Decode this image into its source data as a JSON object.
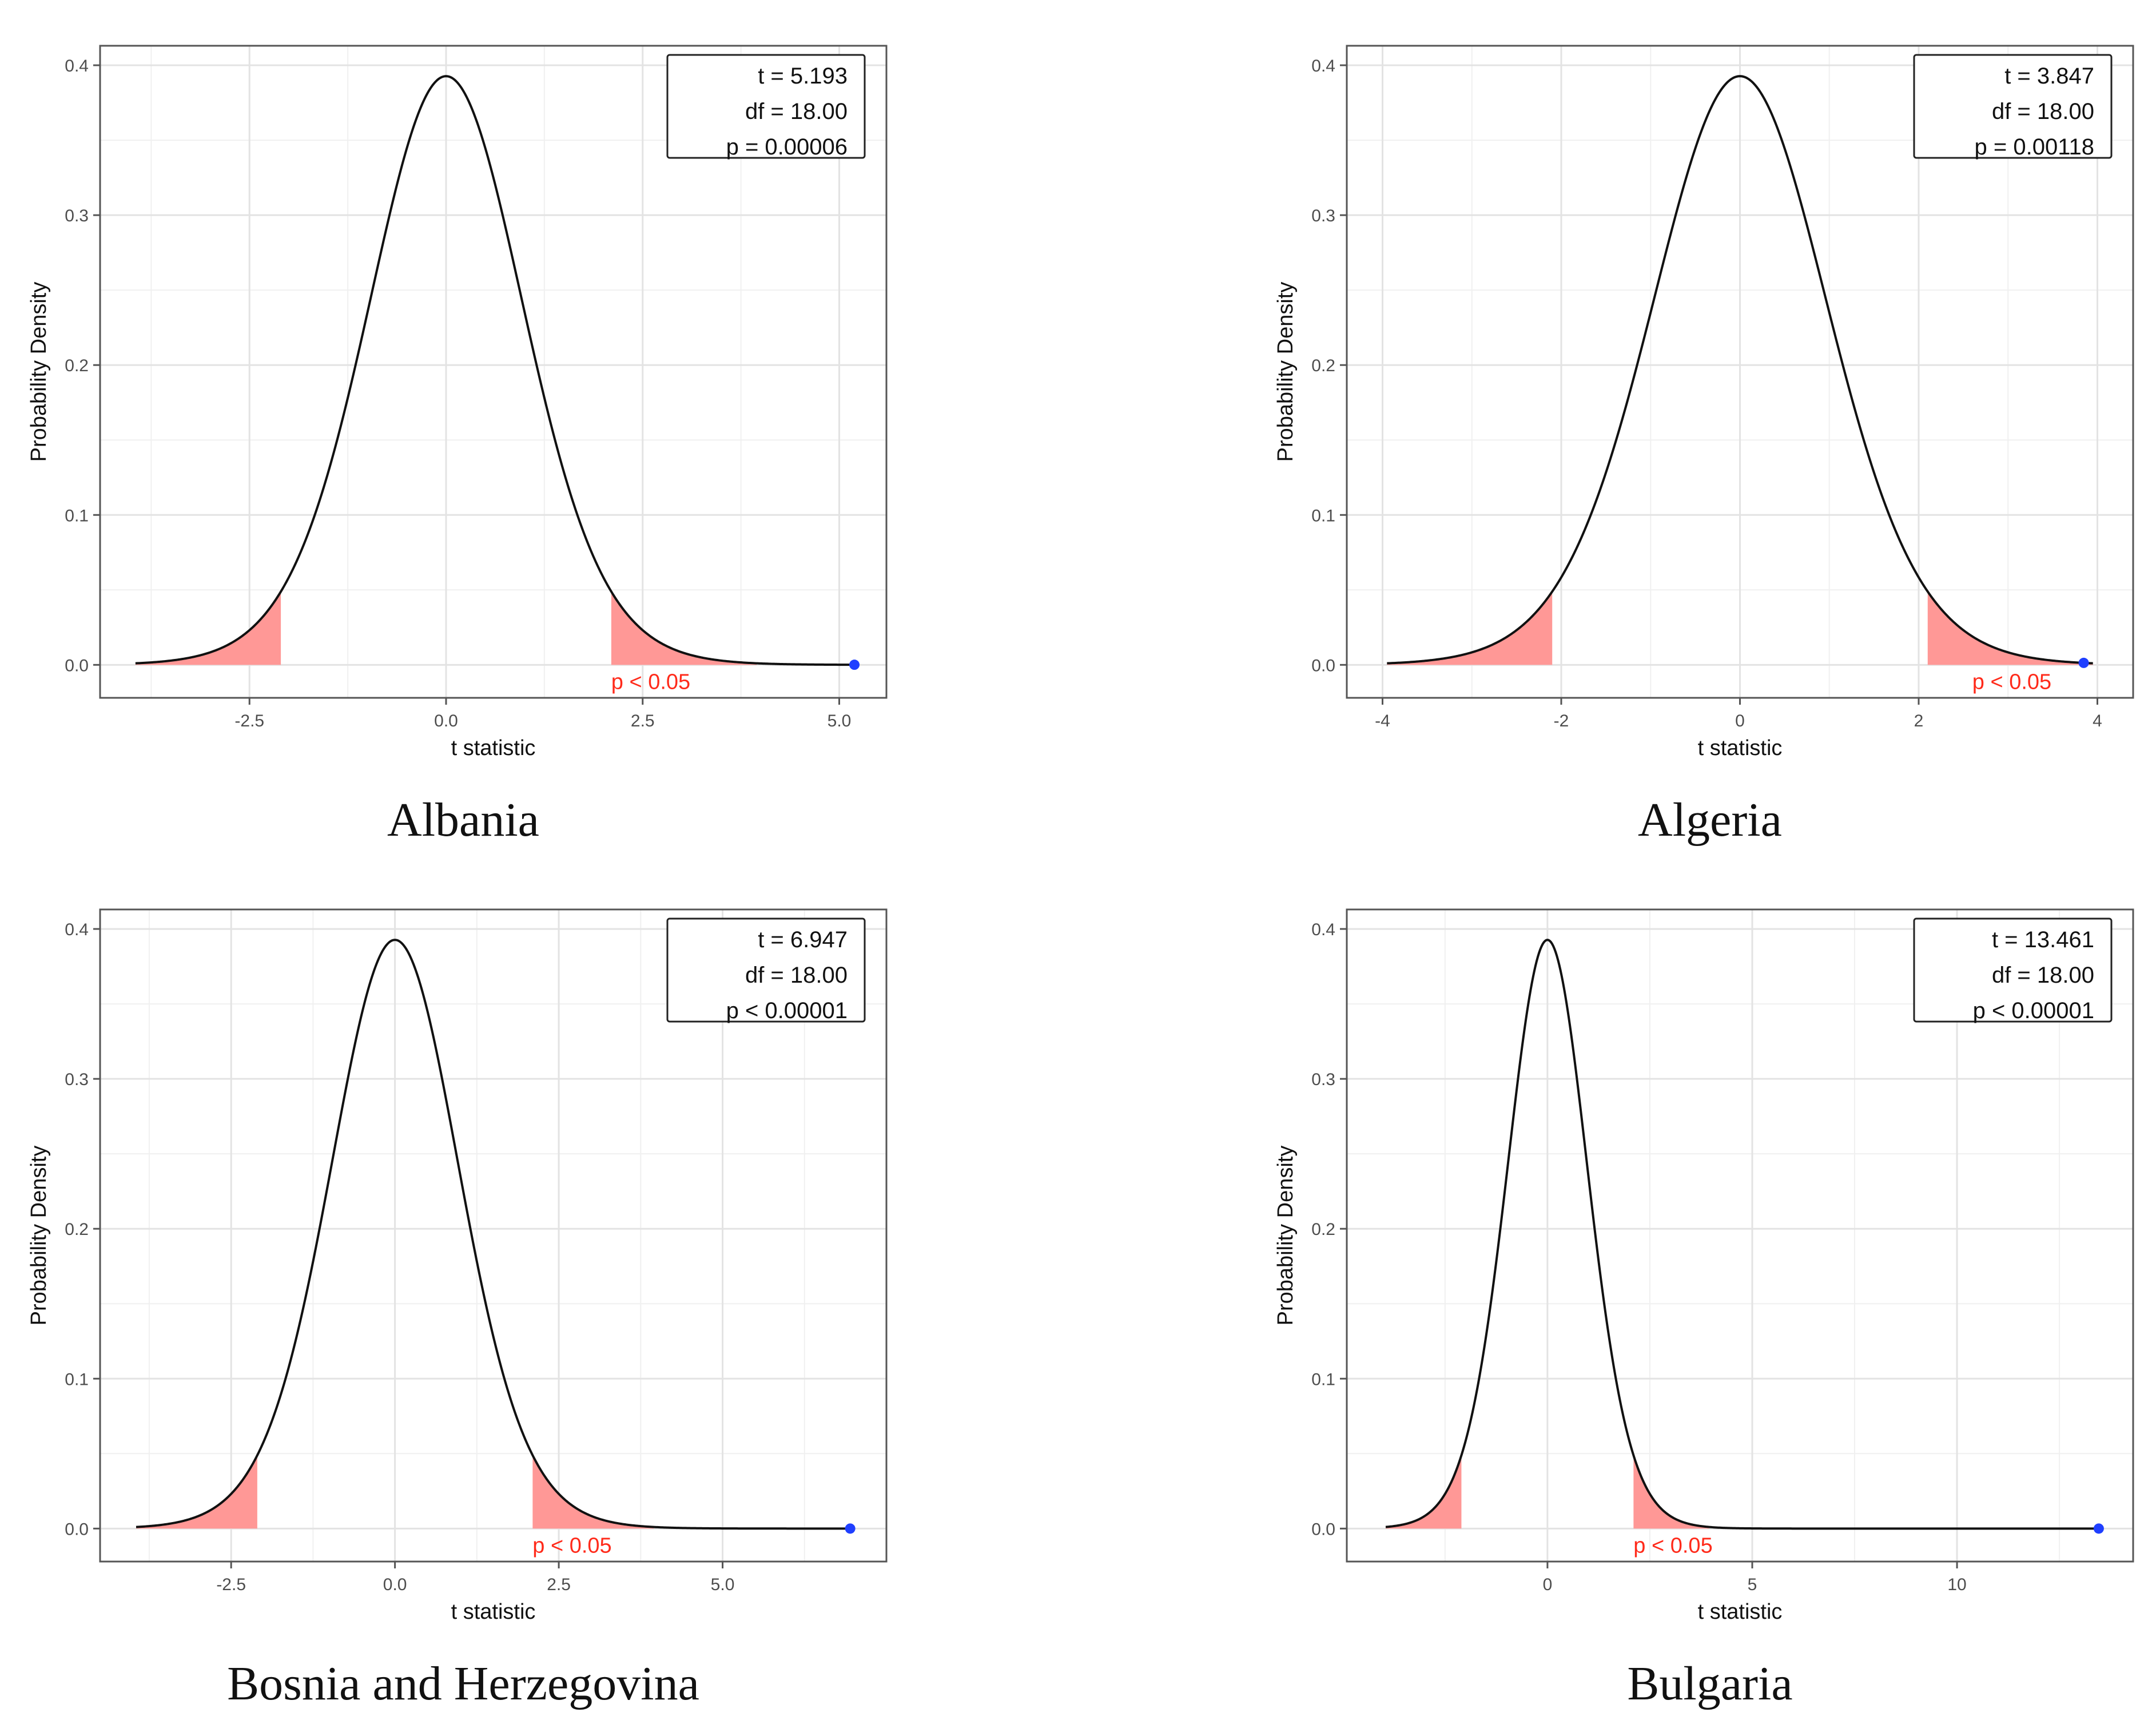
{
  "chart_data": [
    {
      "type": "area",
      "country": "Albania",
      "title": "",
      "xlabel": "t statistic",
      "ylabel": "Probability Density",
      "xlim": [
        -4.4,
        5.6
      ],
      "ylim": [
        -0.022,
        0.413
      ],
      "x_ticks": [
        -2.5,
        0.0,
        2.5,
        5.0
      ],
      "x_tick_labels": [
        "-2.5",
        "0.0",
        "2.5",
        "5.0"
      ],
      "y_ticks": [
        0.0,
        0.1,
        0.2,
        0.3,
        0.4
      ],
      "y_tick_labels": [
        "0.0",
        "0.1",
        "0.2",
        "0.3",
        "0.4"
      ],
      "curve": {
        "distribution": "Student t",
        "df": 18,
        "x_from": -3.95,
        "x_to": 5.193
      },
      "rejection_region": {
        "critical_value": 2.101,
        "shade_to": 3.95,
        "color": "#ff9896",
        "label": "p < 0.05",
        "label_x": 2.1
      },
      "observed": {
        "t": 5.193,
        "color": "#1f3fff"
      },
      "legend": {
        "lines": [
          "t = 5.193",
          "df = 18.00",
          "p = 0.00006"
        ],
        "position": "top-right"
      }
    },
    {
      "type": "area",
      "country": "Algeria",
      "title": "",
      "xlabel": "t statistic",
      "ylabel": "Probability Density",
      "xlim": [
        -4.4,
        4.4
      ],
      "ylim": [
        -0.022,
        0.413
      ],
      "x_ticks": [
        -4,
        -2,
        0,
        2,
        4
      ],
      "x_tick_labels": [
        "-4",
        "-2",
        "0",
        "2",
        "4"
      ],
      "y_ticks": [
        0.0,
        0.1,
        0.2,
        0.3,
        0.4
      ],
      "y_tick_labels": [
        "0.0",
        "0.1",
        "0.2",
        "0.3",
        "0.4"
      ],
      "curve": {
        "distribution": "Student t",
        "df": 18,
        "x_from": -3.95,
        "x_to": 3.95
      },
      "rejection_region": {
        "critical_value": 2.101,
        "shade_to": 3.95,
        "color": "#ff9896",
        "label": "p < 0.05",
        "label_x": 2.6
      },
      "observed": {
        "t": 3.847,
        "color": "#1f3fff"
      },
      "legend": {
        "lines": [
          "t = 3.847",
          "df = 18.00",
          "p = 0.00118"
        ],
        "position": "top-right"
      }
    },
    {
      "type": "area",
      "country": "Bosnia and Herzegovina",
      "title": "",
      "xlabel": "t statistic",
      "ylabel": "Probability Density",
      "xlim": [
        -4.5,
        7.5
      ],
      "ylim": [
        -0.022,
        0.413
      ],
      "x_ticks": [
        -2.5,
        0.0,
        2.5,
        5.0
      ],
      "x_tick_labels": [
        "-2.5",
        "0.0",
        "2.5",
        "5.0"
      ],
      "y_ticks": [
        0.0,
        0.1,
        0.2,
        0.3,
        0.4
      ],
      "y_tick_labels": [
        "0.0",
        "0.1",
        "0.2",
        "0.3",
        "0.4"
      ],
      "curve": {
        "distribution": "Student t",
        "df": 18,
        "x_from": -3.95,
        "x_to": 6.947
      },
      "rejection_region": {
        "critical_value": 2.101,
        "shade_to": 3.95,
        "color": "#ff9896",
        "label": "p < 0.05",
        "label_x": 2.1
      },
      "observed": {
        "t": 6.947,
        "color": "#1f3fff"
      },
      "legend": {
        "lines": [
          "t = 6.947",
          "df = 18.00",
          "p < 0.00001"
        ],
        "position": "top-right"
      }
    },
    {
      "type": "area",
      "country": "Bulgaria",
      "title": "",
      "xlabel": "t statistic",
      "ylabel": "Probability Density",
      "xlim": [
        -4.9,
        14.3
      ],
      "ylim": [
        -0.022,
        0.413
      ],
      "x_ticks": [
        0,
        5,
        10
      ],
      "x_tick_labels": [
        "0",
        "5",
        "10"
      ],
      "y_ticks": [
        0.0,
        0.1,
        0.2,
        0.3,
        0.4
      ],
      "y_tick_labels": [
        "0.0",
        "0.1",
        "0.2",
        "0.3",
        "0.4"
      ],
      "curve": {
        "distribution": "Student t",
        "df": 18,
        "x_from": -3.95,
        "x_to": 13.461
      },
      "rejection_region": {
        "critical_value": 2.101,
        "shade_to": 3.95,
        "color": "#ff9896",
        "label": "p < 0.05",
        "label_x": 2.1
      },
      "observed": {
        "t": 13.461,
        "color": "#1f3fff"
      },
      "legend": {
        "lines": [
          "t = 13.461",
          "df = 18.00",
          "p < 0.00001"
        ],
        "position": "top-right"
      }
    }
  ],
  "captions": [
    "Albania",
    "Algeria",
    "Bosnia and Herzegovina",
    "Bulgaria"
  ]
}
